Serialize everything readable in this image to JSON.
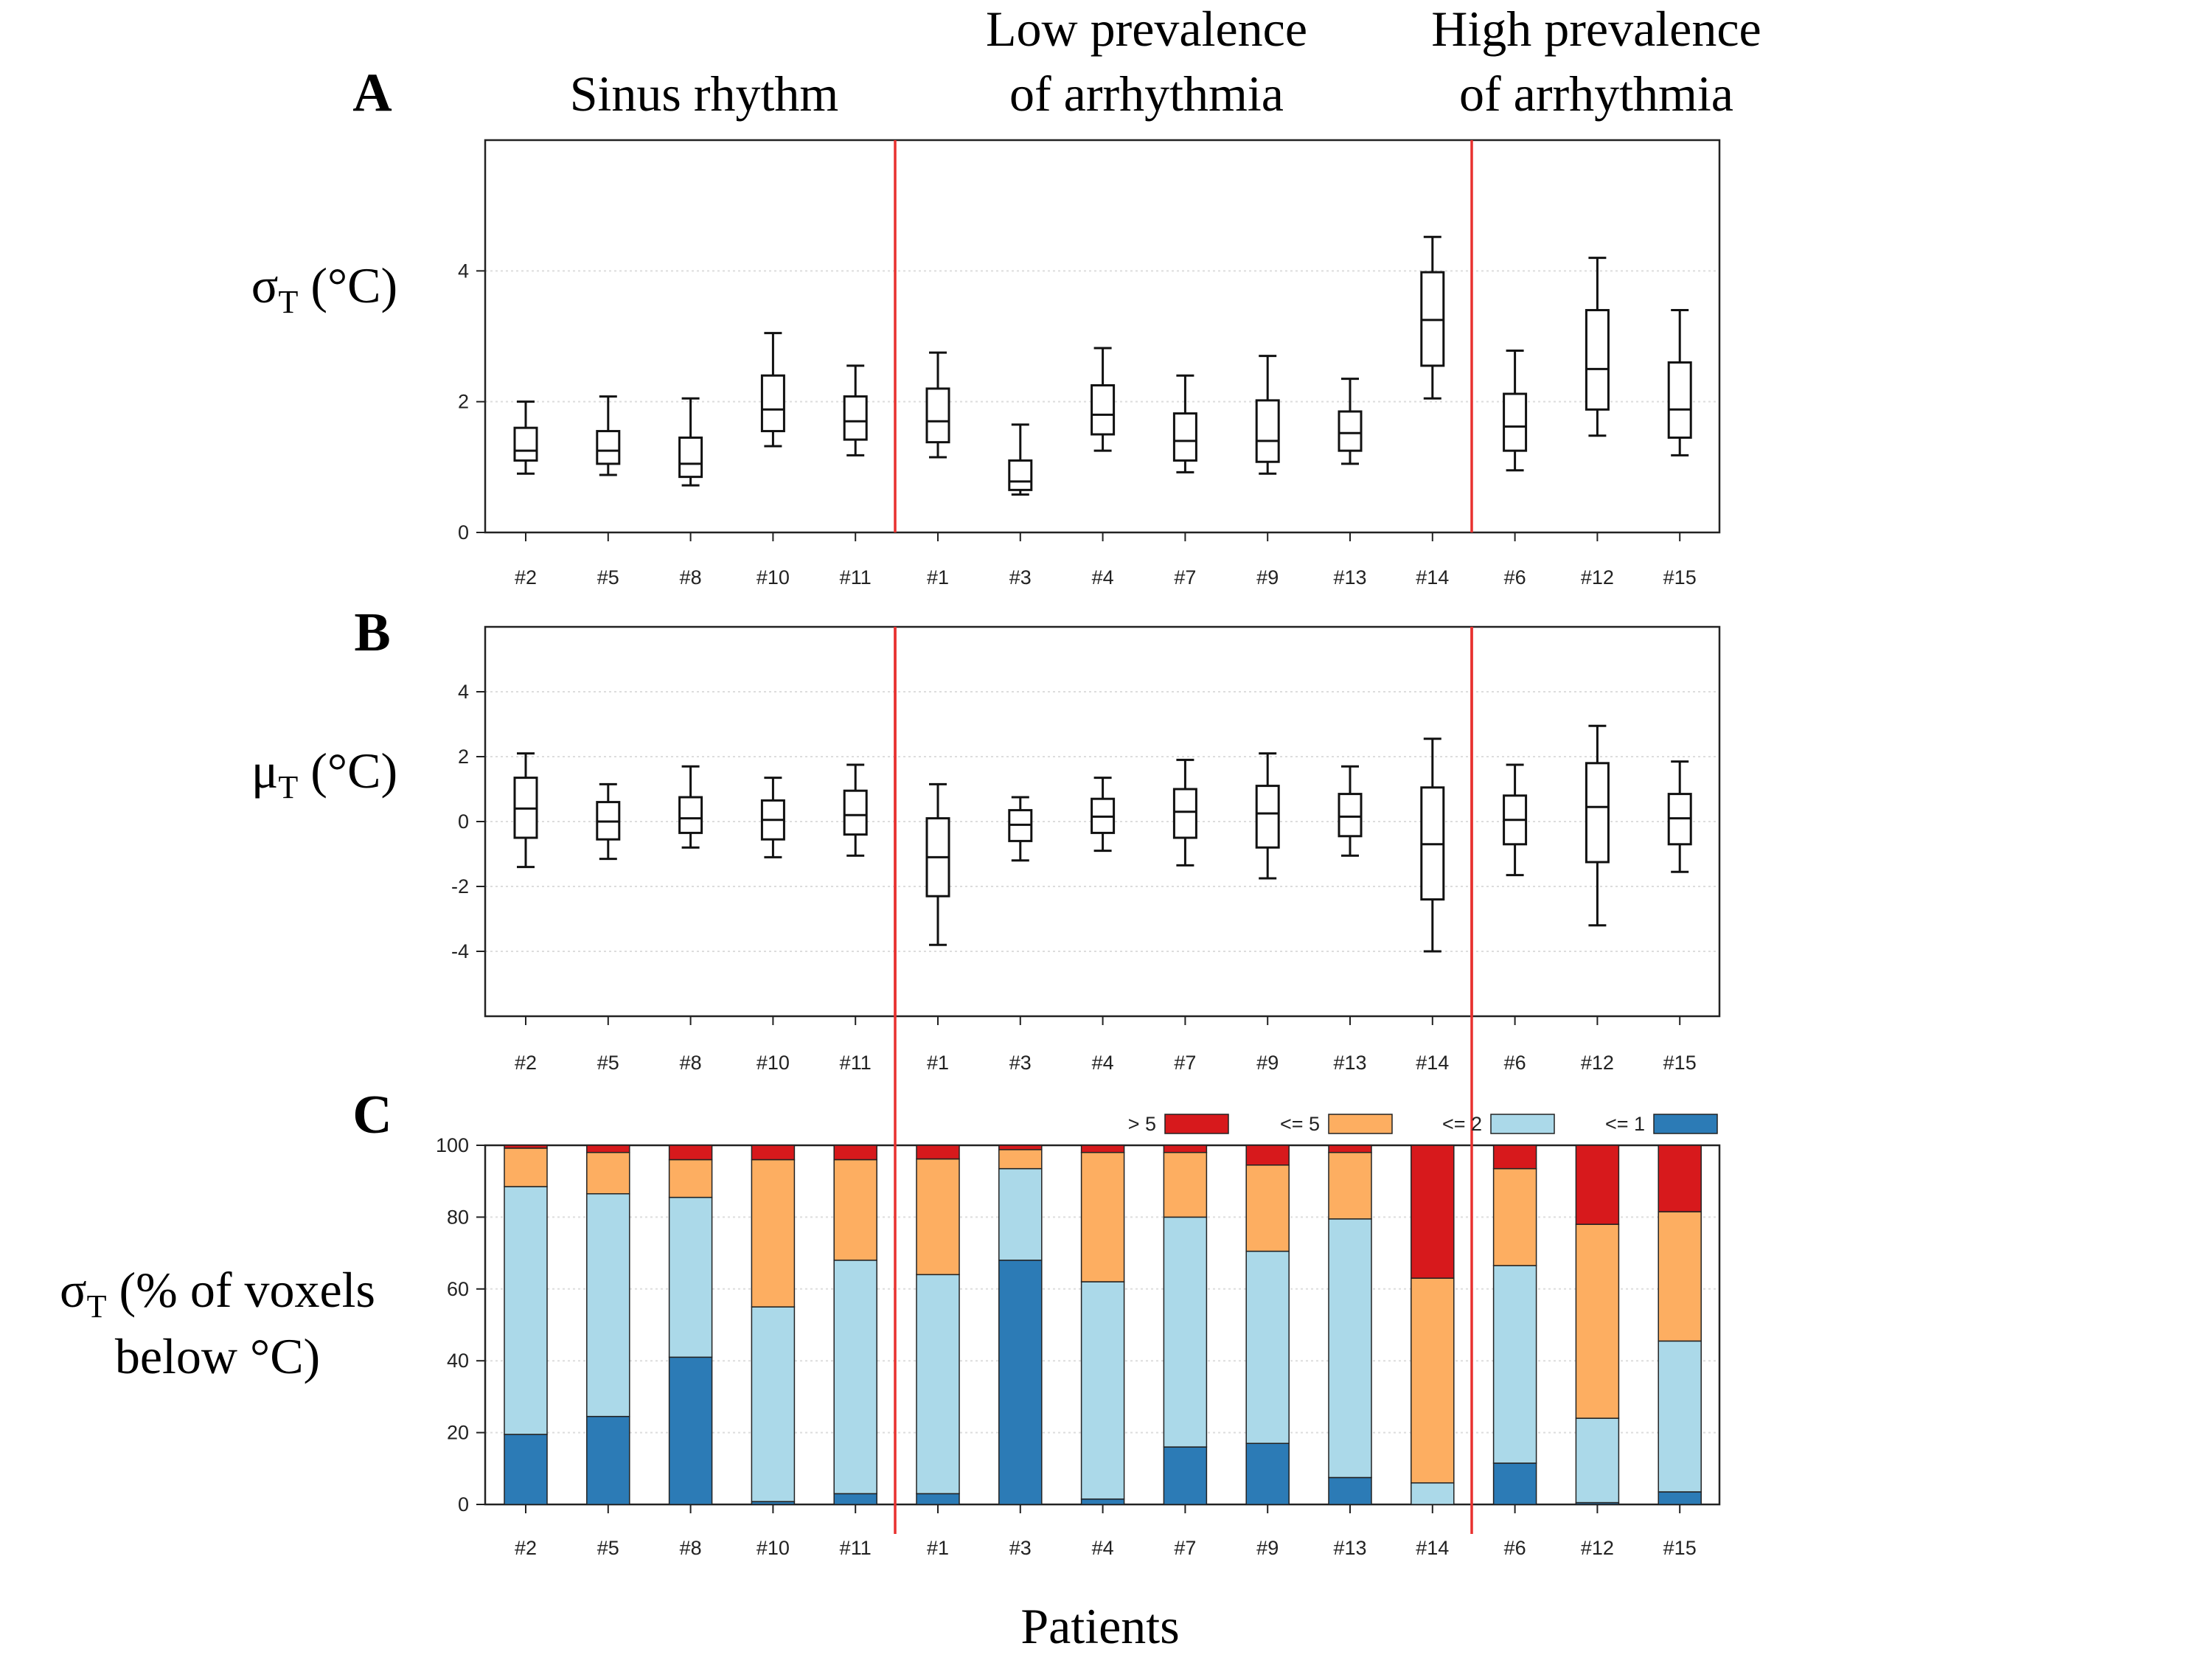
{
  "figure": {
    "xlabel": "Patients",
    "group_labels": [
      {
        "lines": [
          "Sinus rhythm"
        ]
      },
      {
        "lines": [
          "Low prevalence",
          "of arrhythmia"
        ]
      },
      {
        "lines": [
          "High prevalence",
          "of arrhythmia"
        ]
      }
    ],
    "separator_color": "#e8312f"
  },
  "chart_data": [
    {
      "panel": "A",
      "type": "boxplot",
      "ylabel": {
        "main": "σ",
        "sub": "T",
        "rest": " (°C)"
      },
      "ylim": [
        0,
        6
      ],
      "yticks": [
        0,
        2,
        4
      ],
      "categories": [
        "#2",
        "#5",
        "#8",
        "#10",
        "#11",
        "#1",
        "#3",
        "#4",
        "#7",
        "#9",
        "#13",
        "#14",
        "#6",
        "#12",
        "#15"
      ],
      "group_breaks_after": [
        4,
        11
      ],
      "boxes": [
        {
          "min": 0.9,
          "q1": 1.1,
          "median": 1.25,
          "q3": 1.6,
          "max": 2.0
        },
        {
          "min": 0.88,
          "q1": 1.05,
          "median": 1.25,
          "q3": 1.55,
          "max": 2.08
        },
        {
          "min": 0.72,
          "q1": 0.85,
          "median": 1.05,
          "q3": 1.45,
          "max": 2.05
        },
        {
          "min": 1.32,
          "q1": 1.55,
          "median": 1.88,
          "q3": 2.4,
          "max": 3.05
        },
        {
          "min": 1.18,
          "q1": 1.42,
          "median": 1.7,
          "q3": 2.08,
          "max": 2.55
        },
        {
          "min": 1.15,
          "q1": 1.38,
          "median": 1.7,
          "q3": 2.2,
          "max": 2.75
        },
        {
          "min": 0.58,
          "q1": 0.65,
          "median": 0.78,
          "q3": 1.1,
          "max": 1.65
        },
        {
          "min": 1.25,
          "q1": 1.5,
          "median": 1.8,
          "q3": 2.25,
          "max": 2.82
        },
        {
          "min": 0.92,
          "q1": 1.1,
          "median": 1.4,
          "q3": 1.82,
          "max": 2.4
        },
        {
          "min": 0.9,
          "q1": 1.08,
          "median": 1.4,
          "q3": 2.02,
          "max": 2.7
        },
        {
          "min": 1.05,
          "q1": 1.25,
          "median": 1.52,
          "q3": 1.85,
          "max": 2.35
        },
        {
          "min": 2.05,
          "q1": 2.55,
          "median": 3.25,
          "q3": 3.98,
          "max": 4.52
        },
        {
          "min": 0.95,
          "q1": 1.25,
          "median": 1.62,
          "q3": 2.12,
          "max": 2.78
        },
        {
          "min": 1.48,
          "q1": 1.88,
          "median": 2.5,
          "q3": 3.4,
          "max": 4.2
        },
        {
          "min": 1.18,
          "q1": 1.45,
          "median": 1.88,
          "q3": 2.6,
          "max": 3.4
        }
      ]
    },
    {
      "panel": "B",
      "type": "boxplot",
      "ylabel": {
        "main": "μ",
        "sub": "T",
        "rest": " (°C)"
      },
      "ylim": [
        -6,
        6
      ],
      "yticks": [
        -4,
        -2,
        0,
        2,
        4
      ],
      "categories": [
        "#2",
        "#5",
        "#8",
        "#10",
        "#11",
        "#1",
        "#3",
        "#4",
        "#7",
        "#9",
        "#13",
        "#14",
        "#6",
        "#12",
        "#15"
      ],
      "group_breaks_after": [
        4,
        11
      ],
      "boxes": [
        {
          "min": -1.4,
          "q1": -0.5,
          "median": 0.4,
          "q3": 1.35,
          "max": 2.1
        },
        {
          "min": -1.15,
          "q1": -0.55,
          "median": 0.0,
          "q3": 0.6,
          "max": 1.15
        },
        {
          "min": -0.8,
          "q1": -0.35,
          "median": 0.1,
          "q3": 0.75,
          "max": 1.7
        },
        {
          "min": -1.1,
          "q1": -0.55,
          "median": 0.05,
          "q3": 0.65,
          "max": 1.35
        },
        {
          "min": -1.05,
          "q1": -0.4,
          "median": 0.2,
          "q3": 0.95,
          "max": 1.75
        },
        {
          "min": -3.8,
          "q1": -2.3,
          "median": -1.1,
          "q3": 0.1,
          "max": 1.15
        },
        {
          "min": -1.2,
          "q1": -0.6,
          "median": -0.1,
          "q3": 0.35,
          "max": 0.75
        },
        {
          "min": -0.9,
          "q1": -0.35,
          "median": 0.15,
          "q3": 0.7,
          "max": 1.35
        },
        {
          "min": -1.35,
          "q1": -0.5,
          "median": 0.3,
          "q3": 1.0,
          "max": 1.9
        },
        {
          "min": -1.75,
          "q1": -0.8,
          "median": 0.25,
          "q3": 1.1,
          "max": 2.1
        },
        {
          "min": -1.05,
          "q1": -0.45,
          "median": 0.15,
          "q3": 0.85,
          "max": 1.7
        },
        {
          "min": -4.0,
          "q1": -2.4,
          "median": -0.7,
          "q3": 1.05,
          "max": 2.55
        },
        {
          "min": -1.65,
          "q1": -0.7,
          "median": 0.05,
          "q3": 0.8,
          "max": 1.75
        },
        {
          "min": -3.2,
          "q1": -1.25,
          "median": 0.45,
          "q3": 1.8,
          "max": 2.95
        },
        {
          "min": -1.55,
          "q1": -0.7,
          "median": 0.1,
          "q3": 0.85,
          "max": 1.85
        }
      ]
    },
    {
      "panel": "C",
      "type": "stacked-bar",
      "ylabel": {
        "main": "σ",
        "sub": "T",
        "rest": " (% of voxels",
        "line2": "below °C)"
      },
      "ylim": [
        0,
        100
      ],
      "yticks": [
        0,
        20,
        40,
        60,
        80,
        100
      ],
      "categories": [
        "#2",
        "#5",
        "#8",
        "#10",
        "#11",
        "#1",
        "#3",
        "#4",
        "#7",
        "#9",
        "#13",
        "#14",
        "#6",
        "#12",
        "#15"
      ],
      "group_breaks_after": [
        4,
        11
      ],
      "legend": [
        {
          "label": "> 5",
          "color": "#d7191c"
        },
        {
          "label": "<= 5",
          "color": "#fdae61"
        },
        {
          "label": "<= 2",
          "color": "#abd9e9"
        },
        {
          "label": "<= 1",
          "color": "#2c7bb6"
        }
      ],
      "series": [
        {
          "name": "<= 1",
          "color": "#2c7bb6",
          "values": [
            19.5,
            24.5,
            41,
            0.8,
            3,
            3,
            68,
            1.5,
            16,
            17,
            7.5,
            0,
            11.5,
            0.5,
            3.5
          ]
        },
        {
          "name": "<= 2",
          "color": "#abd9e9",
          "values": [
            69,
            62,
            44.5,
            54.2,
            65,
            61,
            25.5,
            60.5,
            64,
            53.5,
            72,
            6,
            55,
            23.5,
            42
          ]
        },
        {
          "name": "<= 5",
          "color": "#fdae61",
          "values": [
            10.7,
            11.5,
            10.5,
            41,
            28,
            32.2,
            5.3,
            36,
            18,
            24,
            18.5,
            57,
            27,
            54,
            36
          ]
        },
        {
          "name": "> 5",
          "color": "#d7191c",
          "values": [
            0.8,
            2,
            4,
            4,
            4,
            3.8,
            1.2,
            2,
            2,
            5.5,
            2,
            37,
            6.5,
            22,
            18.5
          ]
        }
      ]
    }
  ]
}
